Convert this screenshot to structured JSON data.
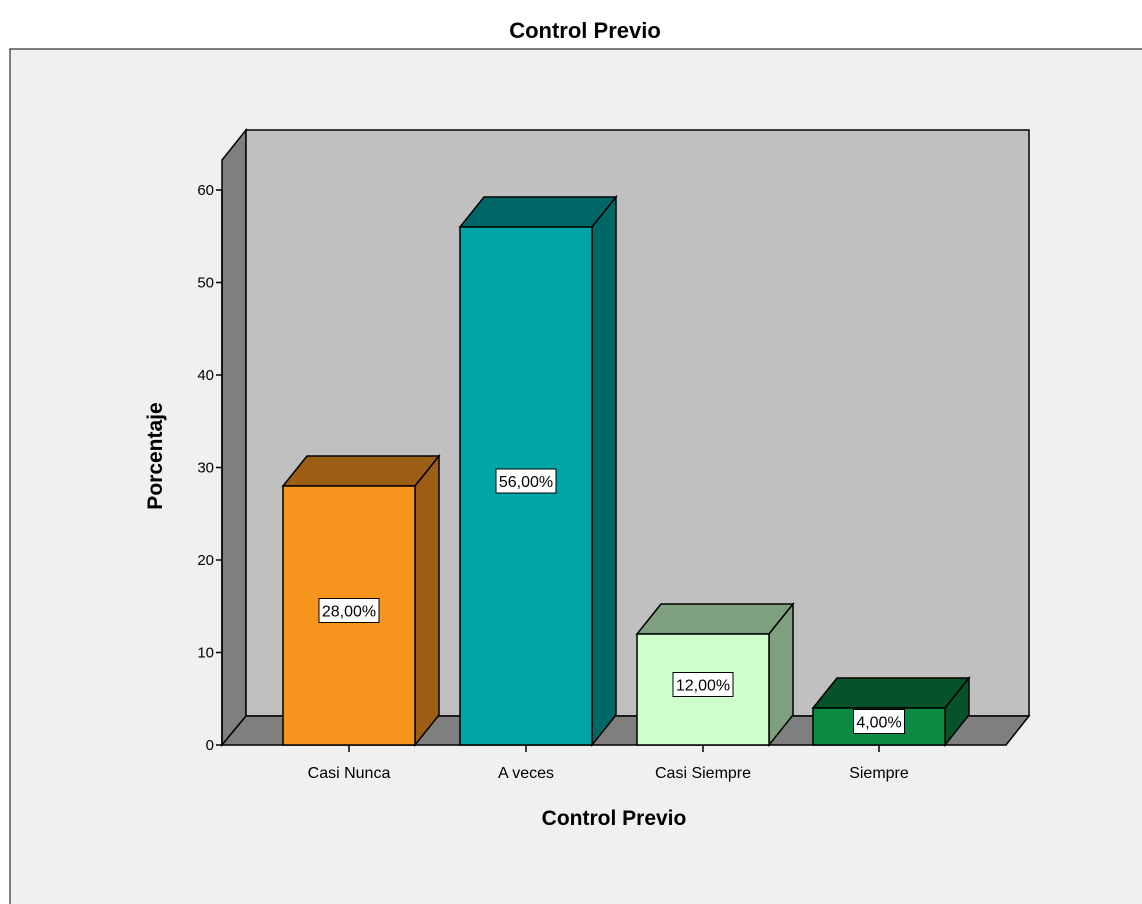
{
  "chart_data": {
    "type": "bar",
    "title": "Control Previo",
    "xlabel": "Control Previo",
    "ylabel": "Porcentaje",
    "categories": [
      "Casi Nunca",
      "A veces",
      "Casi Siempre",
      "Siempre"
    ],
    "values": [
      28,
      56,
      12,
      4
    ],
    "value_labels": [
      "28,00%",
      "56,00%",
      "12,00%",
      "4,00%"
    ],
    "y_ticks": [
      "0",
      "10",
      "20",
      "30",
      "40",
      "50",
      "60"
    ],
    "ylim": [
      0,
      60
    ],
    "grid": false,
    "legend": "none",
    "style": "3d",
    "colors": {
      "bars": [
        "#F7941D",
        "#00A5A5",
        "#CCFFCC",
        "#0C8A43"
      ],
      "bar_tops": [
        "#9C5E14",
        "#006767",
        "#7FA07F",
        "#075329"
      ],
      "bar_sides": [
        "#9C5E14",
        "#006767",
        "#7FA07F",
        "#075329"
      ],
      "back_wall": "#C0C0C0",
      "side_wall": "#7F7F7F",
      "floor": "#7F7F7F",
      "panel": "#F0F0F0"
    }
  }
}
